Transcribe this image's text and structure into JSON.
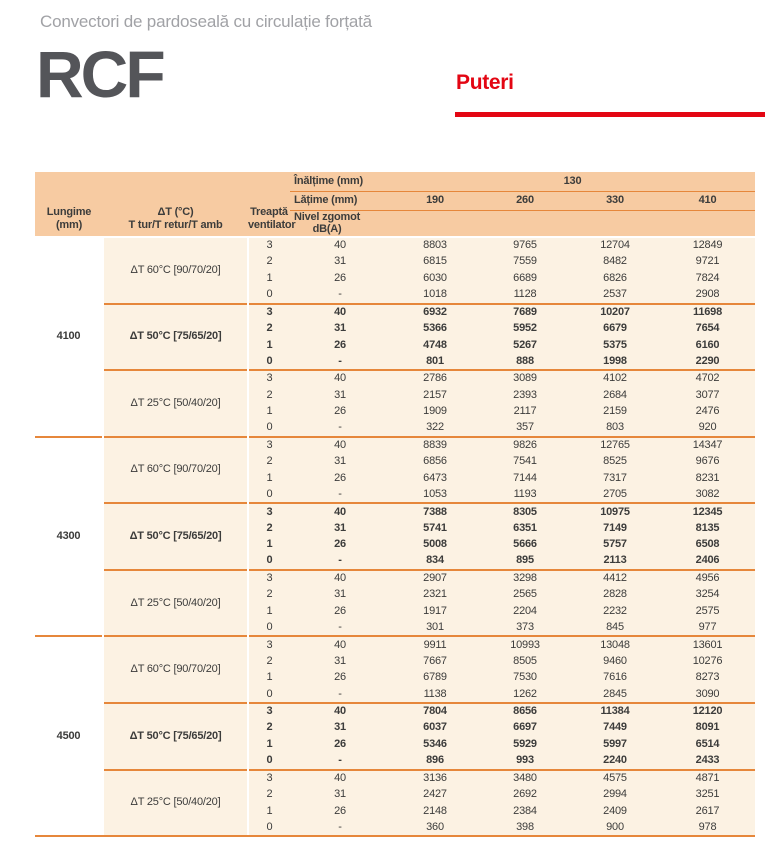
{
  "page": {
    "subtitle": "Convectori de pardoseală cu circulație forțată",
    "model": "RCF",
    "section_title": "Puteri"
  },
  "colors": {
    "accent_red": "#E30613",
    "header_peach": "#F7CBA2",
    "body_cream": "#FCF2E3",
    "divider_orange": "#E6873B",
    "model_gray": "#545559",
    "subtitle_gray": "#A1A2A6",
    "text": "#3C3C3B"
  },
  "table": {
    "header": {
      "height_label": "Înălțime (mm)",
      "height_value": "130",
      "width_label": "Lățime (mm)",
      "width_values": [
        "190",
        "260",
        "330",
        "410"
      ],
      "length_label_line1": "Lungime",
      "length_label_line2": "(mm)",
      "dt_label_line1": "ΔT (°C)",
      "dt_label_line2": "T tur/T retur/T amb",
      "fan_label_line1": "Treaptă",
      "fan_label_line2": "ventilator",
      "noise_label_line1": "Nivel zgomot",
      "noise_label_line2": "dB(A)"
    },
    "groups": [
      {
        "length": "4100",
        "blocks": [
          {
            "dt": "ΔT 60°C [90/70/20]",
            "bold": false,
            "rows": [
              {
                "fan": "3",
                "noise": "40",
                "values": [
                  "8803",
                  "9765",
                  "12704",
                  "12849"
                ]
              },
              {
                "fan": "2",
                "noise": "31",
                "values": [
                  "6815",
                  "7559",
                  "8482",
                  "9721"
                ]
              },
              {
                "fan": "1",
                "noise": "26",
                "values": [
                  "6030",
                  "6689",
                  "6826",
                  "7824"
                ]
              },
              {
                "fan": "0",
                "noise": "-",
                "values": [
                  "1018",
                  "1128",
                  "2537",
                  "2908"
                ]
              }
            ]
          },
          {
            "dt": "ΔT 50°C [75/65/20]",
            "bold": true,
            "rows": [
              {
                "fan": "3",
                "noise": "40",
                "values": [
                  "6932",
                  "7689",
                  "10207",
                  "11698"
                ]
              },
              {
                "fan": "2",
                "noise": "31",
                "values": [
                  "5366",
                  "5952",
                  "6679",
                  "7654"
                ]
              },
              {
                "fan": "1",
                "noise": "26",
                "values": [
                  "4748",
                  "5267",
                  "5375",
                  "6160"
                ]
              },
              {
                "fan": "0",
                "noise": "-",
                "values": [
                  "801",
                  "888",
                  "1998",
                  "2290"
                ]
              }
            ]
          },
          {
            "dt": "ΔT 25°C [50/40/20]",
            "bold": false,
            "rows": [
              {
                "fan": "3",
                "noise": "40",
                "values": [
                  "2786",
                  "3089",
                  "4102",
                  "4702"
                ]
              },
              {
                "fan": "2",
                "noise": "31",
                "values": [
                  "2157",
                  "2393",
                  "2684",
                  "3077"
                ]
              },
              {
                "fan": "1",
                "noise": "26",
                "values": [
                  "1909",
                  "2117",
                  "2159",
                  "2476"
                ]
              },
              {
                "fan": "0",
                "noise": "-",
                "values": [
                  "322",
                  "357",
                  "803",
                  "920"
                ]
              }
            ]
          }
        ]
      },
      {
        "length": "4300",
        "blocks": [
          {
            "dt": "ΔT 60°C [90/70/20]",
            "bold": false,
            "rows": [
              {
                "fan": "3",
                "noise": "40",
                "values": [
                  "8839",
                  "9826",
                  "12765",
                  "14347"
                ]
              },
              {
                "fan": "2",
                "noise": "31",
                "values": [
                  "6856",
                  "7541",
                  "8525",
                  "9676"
                ]
              },
              {
                "fan": "1",
                "noise": "26",
                "values": [
                  "6473",
                  "7144",
                  "7317",
                  "8231"
                ]
              },
              {
                "fan": "0",
                "noise": "-",
                "values": [
                  "1053",
                  "1193",
                  "2705",
                  "3082"
                ]
              }
            ]
          },
          {
            "dt": "ΔT 50°C [75/65/20]",
            "bold": true,
            "rows": [
              {
                "fan": "3",
                "noise": "40",
                "values": [
                  "7388",
                  "8305",
                  "10975",
                  "12345"
                ]
              },
              {
                "fan": "2",
                "noise": "31",
                "values": [
                  "5741",
                  "6351",
                  "7149",
                  "8135"
                ]
              },
              {
                "fan": "1",
                "noise": "26",
                "values": [
                  "5008",
                  "5666",
                  "5757",
                  "6508"
                ]
              },
              {
                "fan": "0",
                "noise": "-",
                "values": [
                  "834",
                  "895",
                  "2113",
                  "2406"
                ]
              }
            ]
          },
          {
            "dt": "ΔT 25°C [50/40/20]",
            "bold": false,
            "rows": [
              {
                "fan": "3",
                "noise": "40",
                "values": [
                  "2907",
                  "3298",
                  "4412",
                  "4956"
                ]
              },
              {
                "fan": "2",
                "noise": "31",
                "values": [
                  "2321",
                  "2565",
                  "2828",
                  "3254"
                ]
              },
              {
                "fan": "1",
                "noise": "26",
                "values": [
                  "1917",
                  "2204",
                  "2232",
                  "2575"
                ]
              },
              {
                "fan": "0",
                "noise": "-",
                "values": [
                  "301",
                  "373",
                  "845",
                  "977"
                ]
              }
            ]
          }
        ]
      },
      {
        "length": "4500",
        "blocks": [
          {
            "dt": "ΔT 60°C [90/70/20]",
            "bold": false,
            "rows": [
              {
                "fan": "3",
                "noise": "40",
                "values": [
                  "9911",
                  "10993",
                  "13048",
                  "13601"
                ]
              },
              {
                "fan": "2",
                "noise": "31",
                "values": [
                  "7667",
                  "8505",
                  "9460",
                  "10276"
                ]
              },
              {
                "fan": "1",
                "noise": "26",
                "values": [
                  "6789",
                  "7530",
                  "7616",
                  "8273"
                ]
              },
              {
                "fan": "0",
                "noise": "-",
                "values": [
                  "1138",
                  "1262",
                  "2845",
                  "3090"
                ]
              }
            ]
          },
          {
            "dt": "ΔT 50°C [75/65/20]",
            "bold": true,
            "rows": [
              {
                "fan": "3",
                "noise": "40",
                "values": [
                  "7804",
                  "8656",
                  "11384",
                  "12120"
                ]
              },
              {
                "fan": "2",
                "noise": "31",
                "values": [
                  "6037",
                  "6697",
                  "7449",
                  "8091"
                ]
              },
              {
                "fan": "1",
                "noise": "26",
                "values": [
                  "5346",
                  "5929",
                  "5997",
                  "6514"
                ]
              },
              {
                "fan": "0",
                "noise": "-",
                "values": [
                  "896",
                  "993",
                  "2240",
                  "2433"
                ]
              }
            ]
          },
          {
            "dt": "ΔT 25°C [50/40/20]",
            "bold": false,
            "rows": [
              {
                "fan": "3",
                "noise": "40",
                "values": [
                  "3136",
                  "3480",
                  "4575",
                  "4871"
                ]
              },
              {
                "fan": "2",
                "noise": "31",
                "values": [
                  "2427",
                  "2692",
                  "2994",
                  "3251"
                ]
              },
              {
                "fan": "1",
                "noise": "26",
                "values": [
                  "2148",
                  "2384",
                  "2409",
                  "2617"
                ]
              },
              {
                "fan": "0",
                "noise": "-",
                "values": [
                  "360",
                  "398",
                  "900",
                  "978"
                ]
              }
            ]
          }
        ]
      }
    ]
  }
}
